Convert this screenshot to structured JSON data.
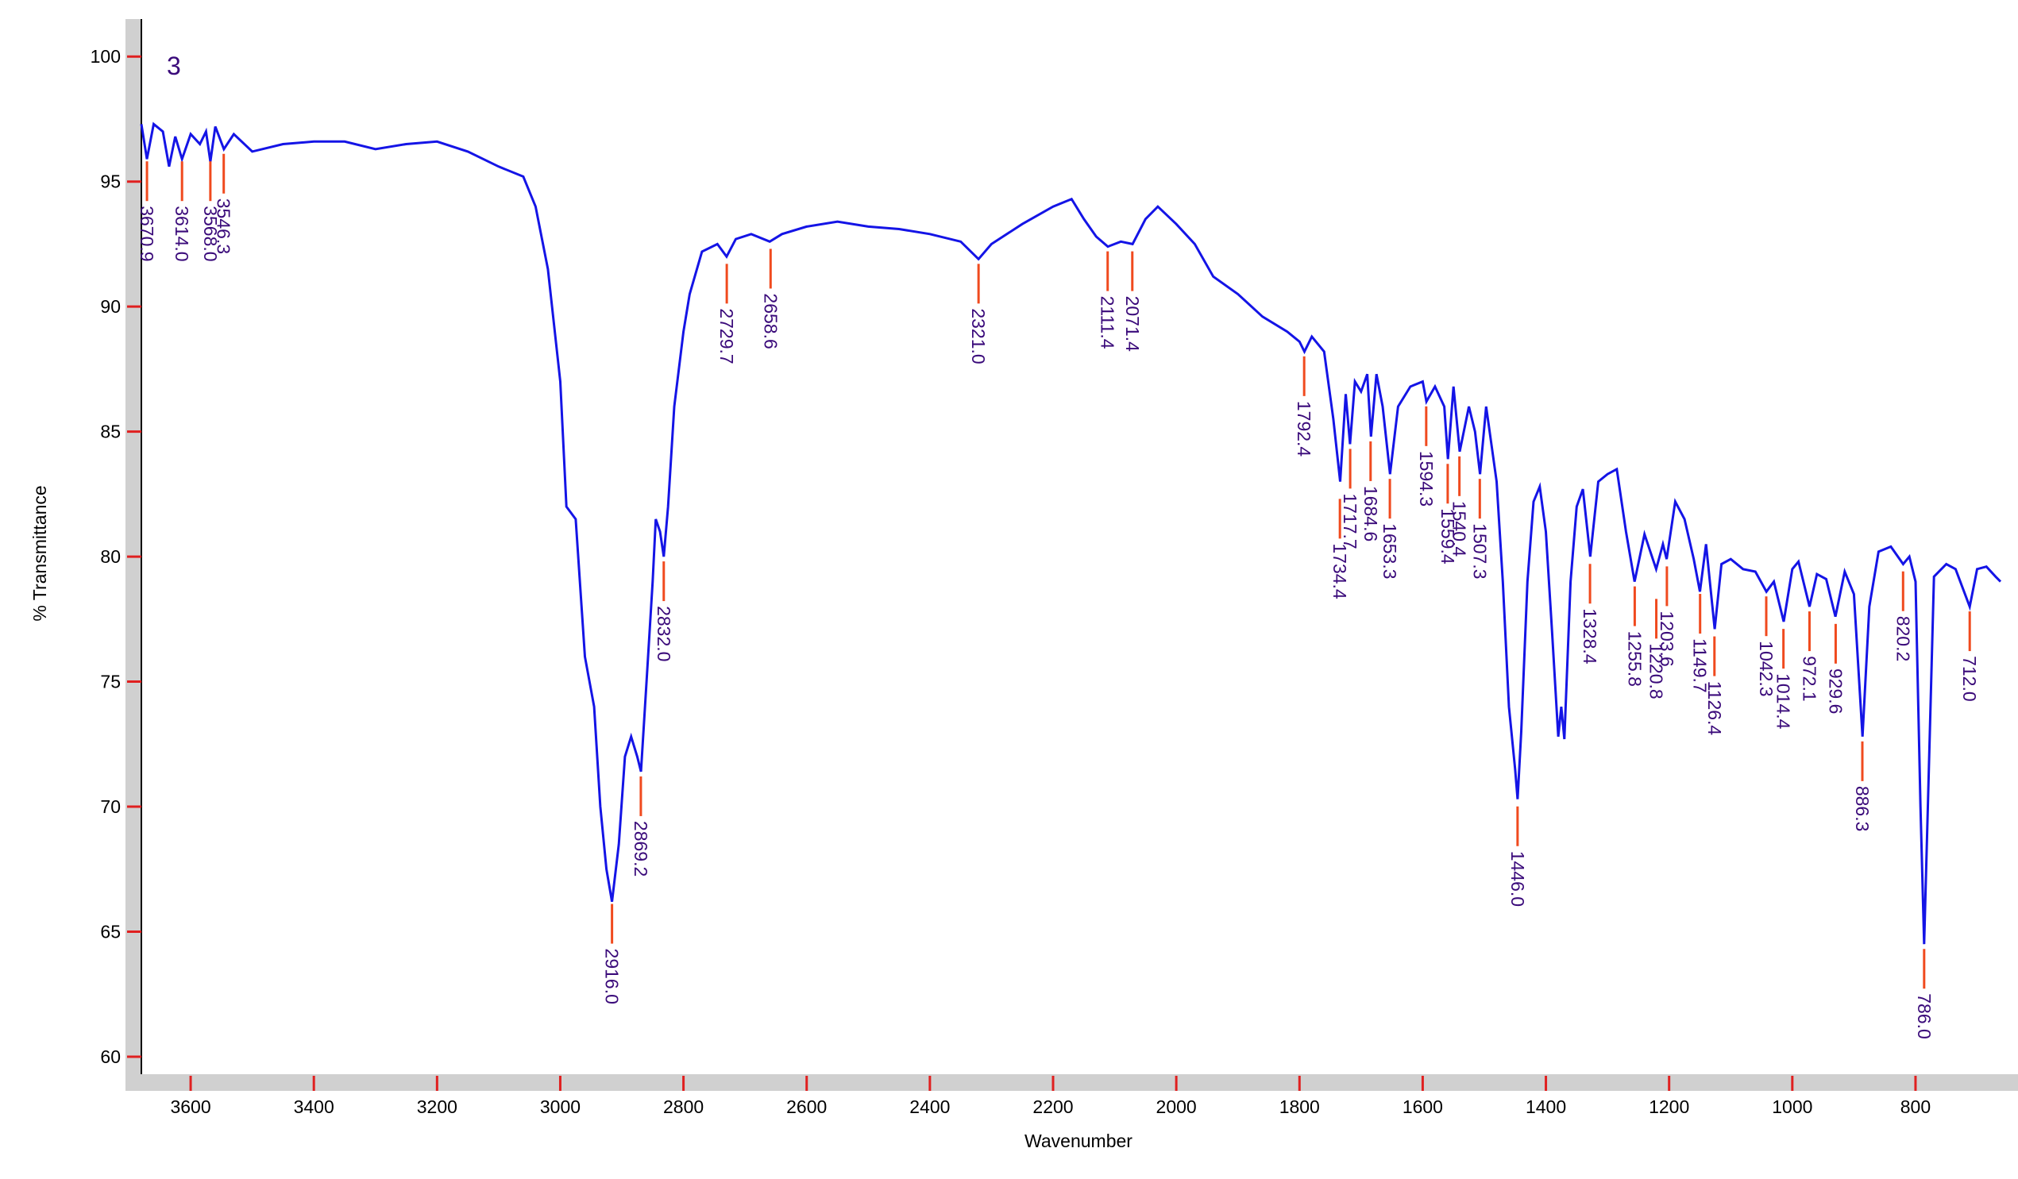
{
  "chart_data": {
    "type": "line",
    "title": "3",
    "xlabel": "Wavenumber",
    "ylabel": "% Transmittance",
    "xlim": [
      3680,
      662
    ],
    "ylim": [
      59.3,
      101.5
    ],
    "xticks": [
      3600,
      3400,
      3200,
      3000,
      2800,
      2600,
      2400,
      2200,
      2000,
      1800,
      1600,
      1400,
      1200,
      1000,
      800
    ],
    "yticks": [
      60,
      65,
      70,
      75,
      80,
      85,
      90,
      95,
      100
    ],
    "series": [
      {
        "name": "3",
        "color": "#1414e6",
        "x": [
          3680,
          3671,
          3660,
          3645,
          3635,
          3625,
          3614,
          3600,
          3585,
          3575,
          3568,
          3560,
          3546,
          3530,
          3500,
          3450,
          3400,
          3350,
          3300,
          3250,
          3200,
          3150,
          3100,
          3060,
          3040,
          3020,
          3000,
          2990,
          2975,
          2960,
          2945,
          2935,
          2925,
          2916,
          2905,
          2895,
          2885,
          2875,
          2869,
          2860,
          2850,
          2845,
          2838,
          2832,
          2825,
          2815,
          2800,
          2790,
          2770,
          2745,
          2730,
          2715,
          2690,
          2660,
          2640,
          2600,
          2550,
          2500,
          2450,
          2400,
          2350,
          2321,
          2300,
          2250,
          2200,
          2170,
          2150,
          2130,
          2111,
          2090,
          2071,
          2050,
          2030,
          2000,
          1970,
          1940,
          1900,
          1860,
          1820,
          1800,
          1792,
          1780,
          1760,
          1745,
          1734,
          1725,
          1718,
          1710,
          1700,
          1690,
          1684,
          1675,
          1665,
          1653,
          1640,
          1620,
          1600,
          1594,
          1580,
          1565,
          1559,
          1550,
          1540,
          1525,
          1515,
          1507,
          1497,
          1480,
          1470,
          1460,
          1450,
          1446,
          1440,
          1430,
          1420,
          1410,
          1400,
          1390,
          1380,
          1375,
          1370,
          1360,
          1350,
          1340,
          1328,
          1315,
          1300,
          1285,
          1270,
          1256,
          1240,
          1221,
          1210,
          1204,
          1190,
          1175,
          1160,
          1150,
          1140,
          1126,
          1115,
          1100,
          1080,
          1060,
          1042,
          1030,
          1014,
          1000,
          990,
          972,
          960,
          945,
          930,
          915,
          900,
          886,
          875,
          860,
          840,
          820,
          810,
          800,
          792,
          786,
          780,
          770,
          750,
          735,
          712,
          700,
          685,
          670,
          662
        ],
        "values": [
          97.3,
          95.9,
          97.3,
          97.0,
          95.6,
          96.8,
          95.9,
          96.9,
          96.5,
          97.0,
          95.8,
          97.2,
          96.3,
          96.9,
          96.2,
          96.5,
          96.6,
          96.6,
          96.3,
          96.5,
          96.6,
          96.2,
          95.6,
          95.2,
          94.0,
          91.5,
          87.0,
          82.0,
          81.5,
          76.0,
          74.0,
          70.0,
          67.5,
          66.2,
          68.5,
          72.0,
          72.8,
          72.0,
          71.4,
          75.0,
          79.0,
          81.5,
          81.0,
          80.0,
          82.0,
          86.0,
          89.0,
          90.5,
          92.2,
          92.5,
          92.0,
          92.7,
          92.9,
          92.6,
          92.9,
          93.2,
          93.4,
          93.2,
          93.1,
          92.9,
          92.6,
          91.9,
          92.5,
          93.3,
          94.0,
          94.3,
          93.5,
          92.8,
          92.4,
          92.6,
          92.5,
          93.5,
          94.0,
          93.3,
          92.5,
          91.2,
          90.5,
          89.6,
          89.0,
          88.6,
          88.2,
          88.8,
          88.2,
          85.5,
          83.0,
          86.5,
          84.5,
          87.0,
          86.6,
          87.3,
          84.8,
          87.3,
          86.0,
          83.3,
          86.0,
          86.8,
          87.0,
          86.2,
          86.8,
          86.0,
          83.9,
          86.8,
          84.2,
          86.0,
          85.0,
          83.3,
          86.0,
          83.0,
          79.0,
          74.0,
          71.5,
          70.3,
          73.0,
          79.0,
          82.2,
          82.8,
          81.0,
          77.0,
          72.8,
          74.0,
          72.7,
          79.0,
          82.0,
          82.7,
          80.0,
          83.0,
          83.3,
          83.5,
          81.0,
          79.0,
          80.9,
          79.5,
          80.5,
          79.9,
          82.2,
          81.5,
          79.9,
          78.6,
          80.5,
          77.1,
          79.7,
          79.9,
          79.5,
          79.4,
          78.6,
          79.0,
          77.4,
          79.5,
          79.8,
          78.0,
          79.3,
          79.1,
          77.6,
          79.4,
          78.5,
          72.8,
          78.0,
          80.2,
          80.4,
          79.7,
          80.0,
          79.0,
          70.0,
          64.5,
          70.0,
          79.2,
          79.7,
          79.5,
          78.0,
          79.5,
          79.6,
          79.2,
          79.0
        ]
      }
    ],
    "peaks": {
      "color": "#f04a1e",
      "x": [
        3670.9,
        3614.0,
        3568.0,
        3546.3,
        2916.0,
        2869.2,
        2832.0,
        2729.7,
        2658.6,
        2321.0,
        2111.4,
        2071.4,
        1792.4,
        1734.4,
        1717.7,
        1684.6,
        1653.3,
        1594.3,
        1559.4,
        1540.4,
        1507.3,
        1446.0,
        1328.4,
        1255.8,
        1220.8,
        1203.6,
        1149.7,
        1126.4,
        1042.3,
        1014.4,
        972.1,
        929.6,
        886.3,
        820.2,
        786.0,
        712.0
      ],
      "x_labels": [
        "3670.9",
        "3614.0",
        "3568.0",
        "3546.3",
        "2916.0",
        "2869.2",
        "2832.0",
        "2729.7",
        "2658.6",
        "2321.0",
        "2111.4",
        "2071.4",
        "1792.4",
        "1734.4",
        "1717.7",
        "1684.6",
        "1653.3",
        "1594.3",
        "1559.4",
        "1540.4",
        "1507.3",
        "1446.0",
        "1328.4",
        "1255.8",
        "1220.8",
        "1203.6",
        "1149.7",
        "1126.4",
        "1042.3",
        "1014.4",
        "972.1",
        "929.6",
        "886.3",
        "820.2",
        "786.0",
        "712.0"
      ],
      "values": [
        96.0,
        96.0,
        96.0,
        96.3,
        66.3,
        71.4,
        80.0,
        91.9,
        92.5,
        91.9,
        92.4,
        92.4,
        88.2,
        82.5,
        84.5,
        84.8,
        83.3,
        86.2,
        83.9,
        84.2,
        83.3,
        70.2,
        79.9,
        79.0,
        78.5,
        79.8,
        78.7,
        77.0,
        78.6,
        77.3,
        78.0,
        77.5,
        72.8,
        79.6,
        64.5,
        78.0
      ]
    }
  }
}
